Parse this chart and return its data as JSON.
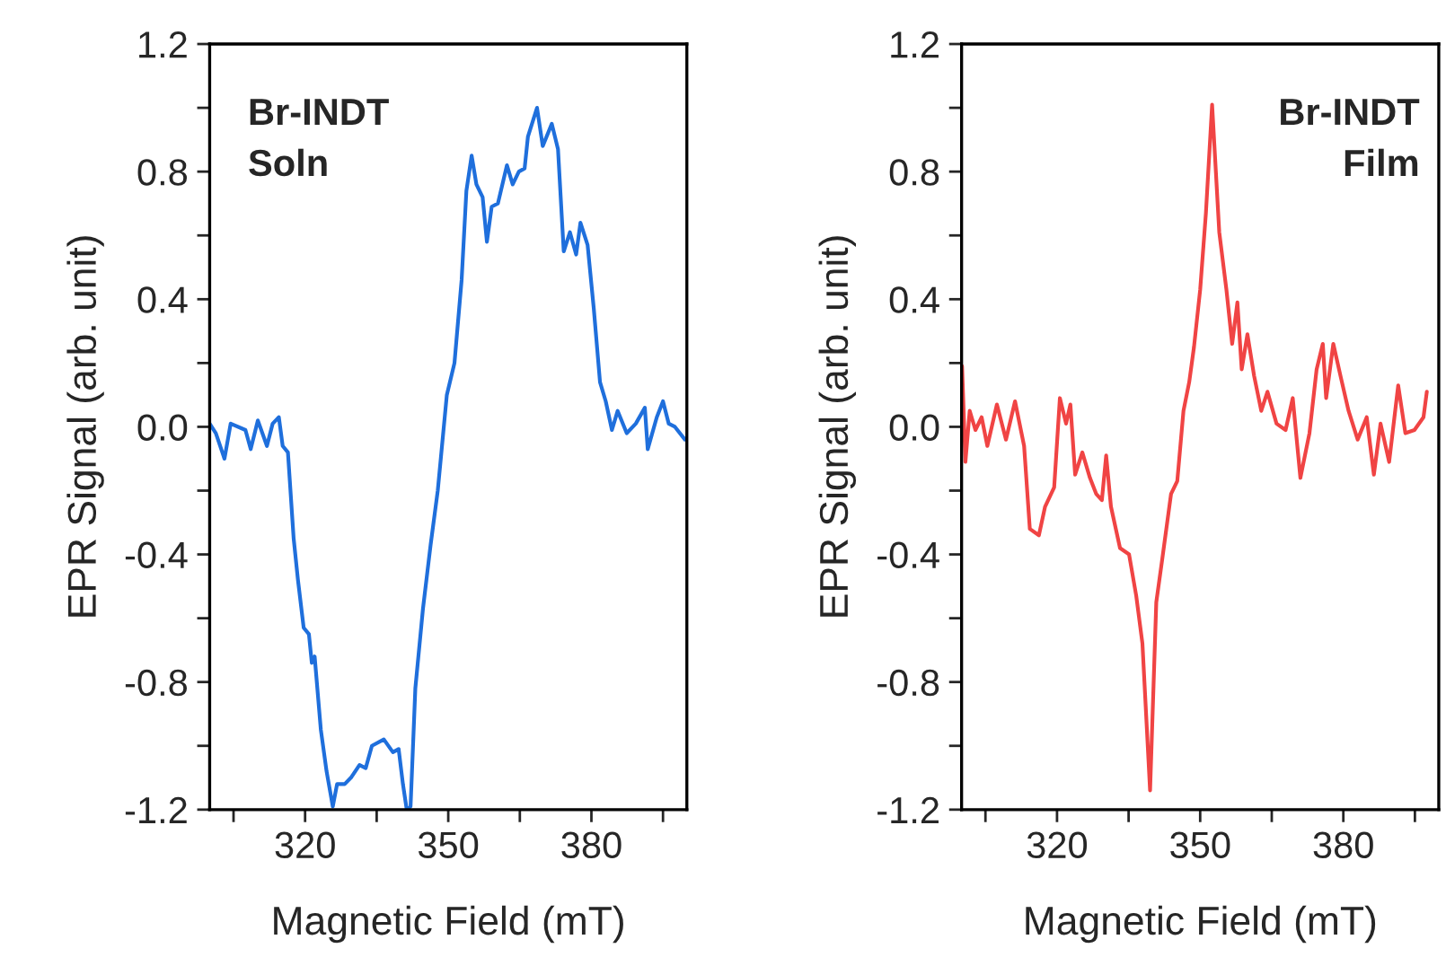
{
  "chart_data": [
    {
      "type": "line",
      "xlabel": "Magnetic Field (mT)",
      "ylabel": "EPR Signal (arb. unit)",
      "annotations": [
        "Br-INDT\nSoln"
      ],
      "xlim": [
        300,
        400
      ],
      "xticks": [
        {
          "value": 305,
          "label": null
        },
        320,
        {
          "value": 335,
          "label": null
        },
        350,
        {
          "value": 365,
          "label": null
        },
        380,
        {
          "value": 395,
          "label": null
        }
      ],
      "ylim": [
        -1.2,
        1.2
      ],
      "yticks": [
        -1.2,
        {
          "value": -1.0,
          "label": null
        },
        -0.8,
        {
          "value": -0.6,
          "label": null
        },
        -0.4,
        {
          "value": -0.2,
          "label": null
        },
        {
          "value": 0,
          "label": "0.0"
        },
        {
          "value": 0.2,
          "label": null
        },
        0.4,
        {
          "value": 0.6,
          "label": null
        },
        0.8,
        {
          "value": 1.0,
          "label": null
        },
        1.2
      ],
      "grid": false,
      "legend": false,
      "series": [
        {
          "color": "#1f6fdc",
          "x": [
            300,
            301.3,
            303.1,
            304.4,
            307.5,
            308.6,
            310.1,
            312,
            313.2,
            314.5,
            315.3,
            316.4,
            317.6,
            318.5,
            319.7,
            320.8,
            321.4,
            322,
            323.3,
            324.5,
            325.8,
            326.7,
            328.3,
            329.6,
            331.4,
            332.7,
            334,
            336.5,
            338.4,
            339.6,
            340.5,
            341.3,
            342.1,
            343.1,
            344.7,
            346.3,
            347.8,
            349.7,
            351.3,
            352.8,
            353.8,
            354.9,
            355.9,
            357.2,
            358.1,
            359.1,
            360.4,
            362.3,
            363.5,
            364.8,
            366,
            366.7,
            368.6,
            369.8,
            371.7,
            373,
            374.2,
            375.5,
            376.8,
            377.7,
            379.2,
            380.5,
            381.8,
            383,
            384.3,
            385.5,
            387.4,
            389.3,
            391.2,
            391.8,
            393.7,
            395,
            396.2,
            397.5,
            399.6
          ],
          "values": [
            0.01,
            -0.02,
            -0.1,
            0.01,
            -0.01,
            -0.07,
            0.02,
            -0.06,
            0.01,
            0.03,
            -0.06,
            -0.08,
            -0.35,
            -0.48,
            -0.63,
            -0.65,
            -0.74,
            -0.72,
            -0.95,
            -1.08,
            -1.19,
            -1.12,
            -1.12,
            -1.1,
            -1.06,
            -1.07,
            -1.0,
            -0.98,
            -1.02,
            -1.01,
            -1.12,
            -1.2,
            -1.19,
            -0.82,
            -0.57,
            -0.37,
            -0.2,
            0.1,
            0.2,
            0.46,
            0.74,
            0.85,
            0.76,
            0.72,
            0.58,
            0.69,
            0.7,
            0.82,
            0.76,
            0.8,
            0.81,
            0.91,
            1.0,
            0.88,
            0.95,
            0.87,
            0.55,
            0.61,
            0.54,
            0.64,
            0.57,
            0.37,
            0.14,
            0.08,
            -0.01,
            0.05,
            -0.02,
            0.01,
            0.06,
            -0.07,
            0.03,
            0.08,
            0.01,
            0.0,
            -0.04
          ]
        }
      ]
    },
    {
      "type": "line",
      "xlabel": "Magnetic Field (mT)",
      "ylabel": "EPR Signal (arb. unit)",
      "annotations": [
        "Br-INDT\nFilm"
      ],
      "xlim": [
        300,
        400
      ],
      "xticks": [
        {
          "value": 305,
          "label": null
        },
        320,
        {
          "value": 335,
          "label": null
        },
        350,
        {
          "value": 365,
          "label": null
        },
        380,
        {
          "value": 395,
          "label": null
        }
      ],
      "ylim": [
        -1.2,
        1.2
      ],
      "yticks": [
        -1.2,
        {
          "value": -1.0,
          "label": null
        },
        -0.8,
        {
          "value": -0.6,
          "label": null
        },
        -0.4,
        {
          "value": -0.2,
          "label": null
        },
        {
          "value": 0,
          "label": "0.0"
        },
        {
          "value": 0.2,
          "label": null
        },
        0.4,
        {
          "value": 0.6,
          "label": null
        },
        0.8,
        {
          "value": 1.0,
          "label": null
        },
        1.2
      ],
      "grid": false,
      "legend": false,
      "series": [
        {
          "color": "#f04444",
          "x": [
            300.1,
            300.8,
            301.7,
            302.9,
            304.2,
            305.4,
            307.4,
            309.3,
            311.2,
            313.1,
            314.3,
            316.2,
            317.5,
            319.4,
            320.6,
            321.9,
            322.8,
            323.8,
            325.3,
            326.9,
            328.2,
            329.4,
            330.3,
            331.3,
            333.2,
            335.1,
            336.6,
            337.9,
            339.5,
            340.8,
            342,
            343.9,
            345.2,
            346.5,
            347.7,
            348.7,
            350,
            351.2,
            352.5,
            354,
            355.5,
            356.7,
            357.8,
            358.7,
            359.9,
            361.3,
            362.8,
            364.1,
            366,
            367.9,
            369.4,
            371,
            372.9,
            374.4,
            375.7,
            376.4,
            377.9,
            379.4,
            381.1,
            383,
            384.9,
            386.4,
            387.8,
            389.6,
            391.5,
            393,
            394.9,
            396.8,
            397.5
          ],
          "values": [
            0.19,
            -0.11,
            0.05,
            -0.01,
            0.03,
            -0.06,
            0.07,
            -0.04,
            0.08,
            -0.06,
            -0.32,
            -0.34,
            -0.25,
            -0.19,
            0.09,
            0.01,
            0.07,
            -0.15,
            -0.08,
            -0.16,
            -0.21,
            -0.23,
            -0.09,
            -0.25,
            -0.38,
            -0.4,
            -0.53,
            -0.68,
            -1.14,
            -0.55,
            -0.42,
            -0.21,
            -0.17,
            0.05,
            0.14,
            0.25,
            0.43,
            0.67,
            1.01,
            0.61,
            0.43,
            0.26,
            0.39,
            0.18,
            0.29,
            0.16,
            0.05,
            0.11,
            0.01,
            -0.01,
            0.09,
            -0.16,
            -0.02,
            0.18,
            0.26,
            0.09,
            0.26,
            0.16,
            0.05,
            -0.04,
            0.03,
            -0.15,
            0.01,
            -0.11,
            0.13,
            -0.02,
            -0.01,
            0.03,
            0.11
          ]
        }
      ]
    }
  ]
}
